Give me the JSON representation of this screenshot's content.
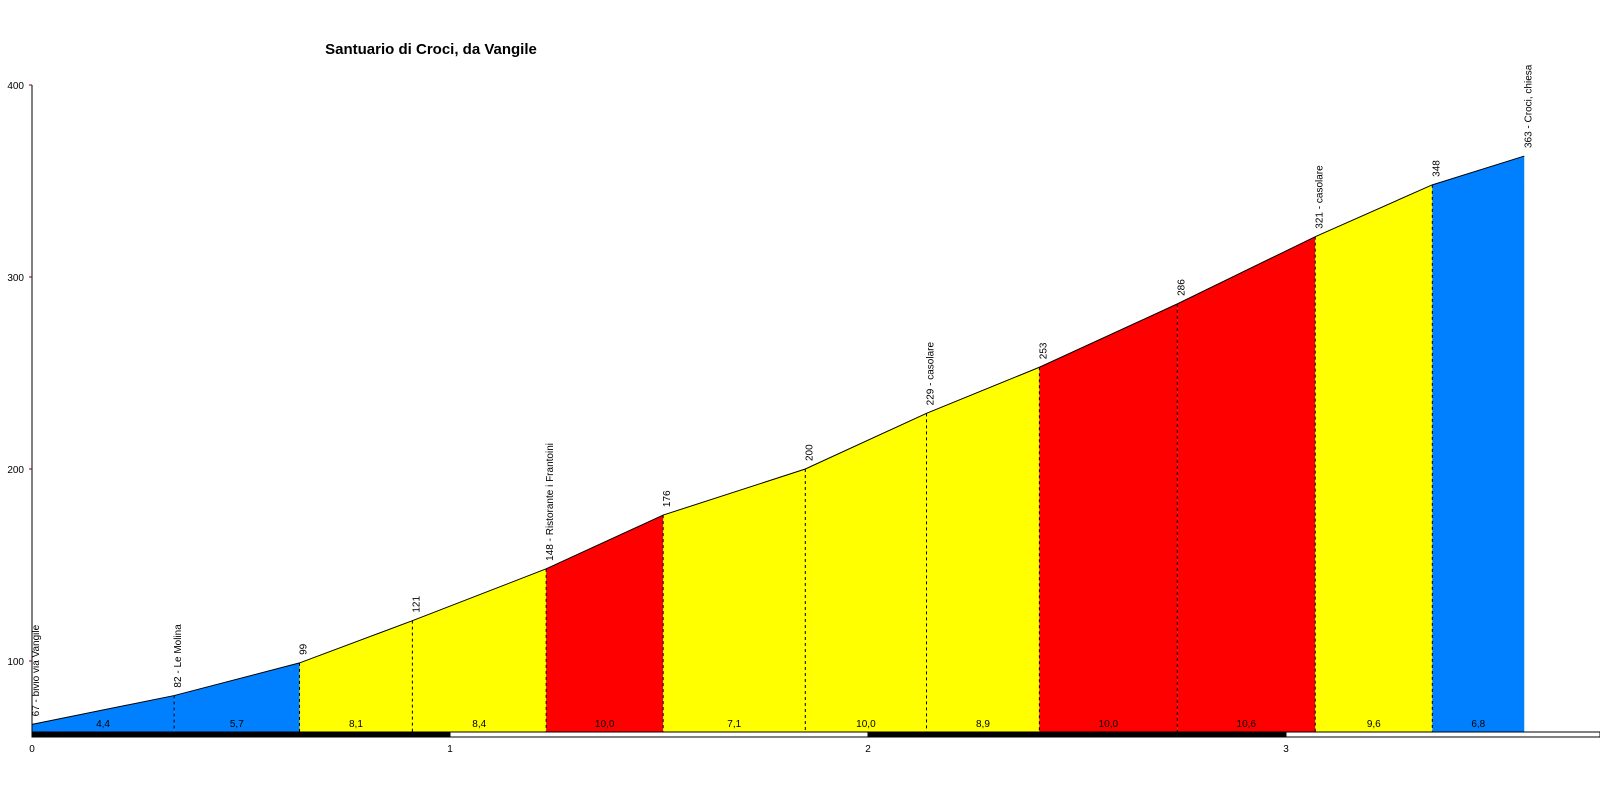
{
  "chart_data": {
    "type": "area",
    "title": "Santuario di Croci, da Vangile",
    "xlabel": "",
    "ylabel": "",
    "xlim": [
      0,
      3.75
    ],
    "ylim": [
      67,
      400
    ],
    "x_ticks": [
      "0",
      "1",
      "2",
      "3"
    ],
    "y_ticks": [
      "100",
      "200",
      "300",
      "400"
    ],
    "points": [
      {
        "x": 0.0,
        "y": 67,
        "label": "67 - bivio via Vangile"
      },
      {
        "x": 0.34,
        "y": 82,
        "label": "82 - Le Molina"
      },
      {
        "x": 0.64,
        "y": 99,
        "label": "99"
      },
      {
        "x": 0.91,
        "y": 121,
        "label": "121"
      },
      {
        "x": 1.23,
        "y": 148,
        "label": "148 - Ristorante i Frantoini"
      },
      {
        "x": 1.51,
        "y": 176,
        "label": "176"
      },
      {
        "x": 1.85,
        "y": 200,
        "label": "200"
      },
      {
        "x": 2.14,
        "y": 229,
        "label": "229 - casolare"
      },
      {
        "x": 2.41,
        "y": 253,
        "label": "253"
      },
      {
        "x": 2.74,
        "y": 286,
        "label": "286"
      },
      {
        "x": 3.07,
        "y": 321,
        "label": "321 - casolare"
      },
      {
        "x": 3.35,
        "y": 348,
        "label": "348"
      },
      {
        "x": 3.57,
        "y": 363,
        "label": "363 - Croci, chiesa"
      }
    ],
    "segments": [
      {
        "gradient": "4,4",
        "color": "#0080ff"
      },
      {
        "gradient": "5,7",
        "color": "#0080ff"
      },
      {
        "gradient": "8,1",
        "color": "#ffff00"
      },
      {
        "gradient": "8,4",
        "color": "#ffff00"
      },
      {
        "gradient": "10,0",
        "color": "#ff0000"
      },
      {
        "gradient": "7,1",
        "color": "#ffff00"
      },
      {
        "gradient": "10,0",
        "color": "#ffff00"
      },
      {
        "gradient": "8,9",
        "color": "#ffff00"
      },
      {
        "gradient": "10,0",
        "color": "#ff0000"
      },
      {
        "gradient": "10,6",
        "color": "#ff0000"
      },
      {
        "gradient": "9,6",
        "color": "#ffff00"
      },
      {
        "gradient": "6,8",
        "color": "#0080ff"
      }
    ],
    "grid": false,
    "legend": "none"
  }
}
